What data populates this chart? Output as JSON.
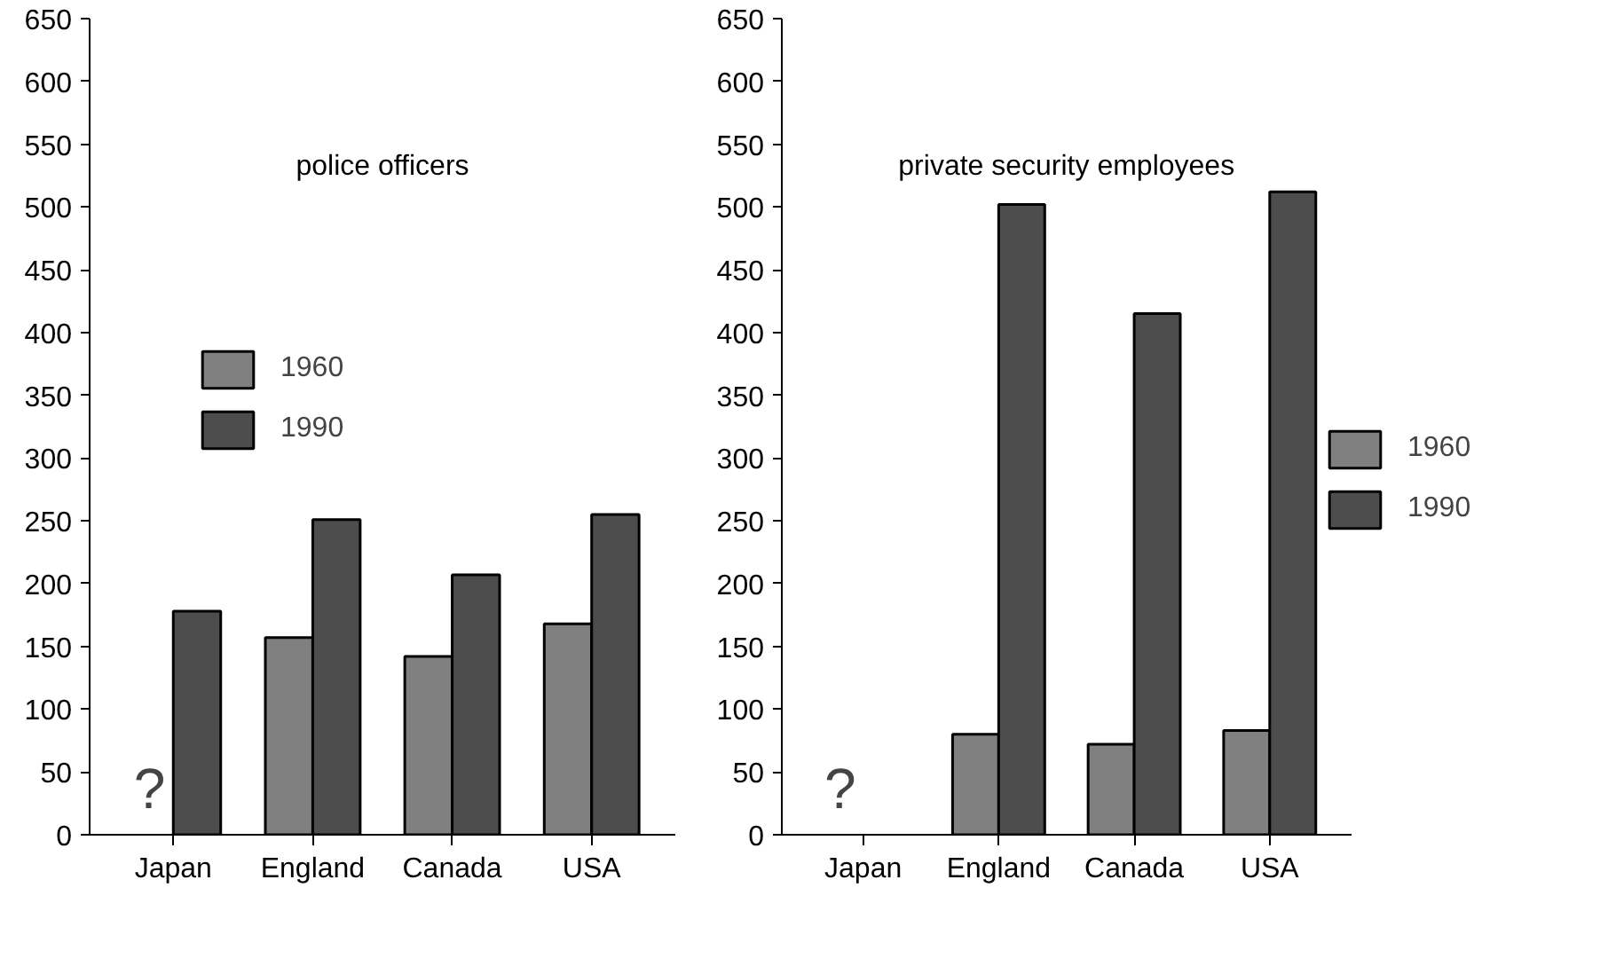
{
  "chart_data": [
    {
      "type": "bar",
      "title": "police officers",
      "categories": [
        "Japan",
        "England",
        "Canada",
        "USA"
      ],
      "series": [
        {
          "name": "1960",
          "color": "#808080",
          "values": [
            null,
            157,
            142,
            168
          ]
        },
        {
          "name": "1990",
          "color": "#4d4d4d",
          "values": [
            178,
            251,
            207,
            255
          ]
        }
      ],
      "ylim": [
        0,
        650
      ],
      "yticks": [
        0,
        50,
        100,
        150,
        200,
        250,
        300,
        350,
        400,
        450,
        500,
        550,
        600,
        650
      ],
      "grid": false,
      "legend": "top left",
      "annotations": [
        "?"
      ]
    },
    {
      "type": "bar",
      "title": "private security employees",
      "categories": [
        "Japan",
        "England",
        "Canada",
        "USA"
      ],
      "series": [
        {
          "name": "1960",
          "color": "#808080",
          "values": [
            null,
            80,
            72,
            83
          ]
        },
        {
          "name": "1990",
          "color": "#4d4d4d",
          "values": [
            null,
            502,
            415,
            512
          ]
        }
      ],
      "ylim": [
        0,
        650
      ],
      "yticks": [
        0,
        50,
        100,
        150,
        200,
        250,
        300,
        350,
        400,
        450,
        500,
        550,
        600,
        650
      ],
      "grid": false,
      "legend": "right",
      "annotations": [
        "?"
      ]
    }
  ]
}
